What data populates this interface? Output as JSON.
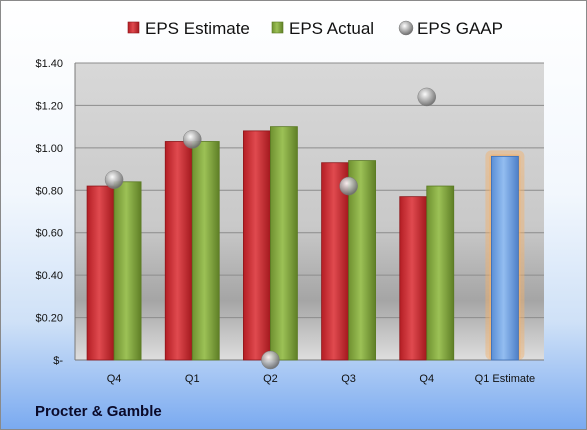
{
  "company": "Procter & Gamble",
  "chart_data": {
    "type": "bar",
    "categories": [
      "Q4",
      "Q1",
      "Q2",
      "Q3",
      "Q4",
      "Q1 Estimate"
    ],
    "series": [
      {
        "name": "EPS Estimate",
        "color": "#c0272d",
        "values": [
          0.82,
          1.03,
          1.08,
          0.93,
          0.77,
          0.96
        ]
      },
      {
        "name": "EPS Actual",
        "color": "#7fa23a",
        "values": [
          0.84,
          1.03,
          1.1,
          0.94,
          0.82,
          null
        ]
      },
      {
        "name": "EPS GAAP",
        "color": "#a8a8a8",
        "values": [
          0.85,
          1.04,
          0.0,
          0.82,
          1.24,
          null
        ]
      }
    ],
    "highlight": {
      "category": "Q1 Estimate",
      "value": 0.96,
      "color": "#6fa0dc",
      "glow": "#f5b26b"
    },
    "ylim": [
      0,
      1.4
    ],
    "yticks": [
      "$-",
      "$0.20",
      "$0.40",
      "$0.60",
      "$0.80",
      "$1.00",
      "$1.20",
      "$1.40"
    ],
    "grid": true,
    "legend": "top"
  }
}
